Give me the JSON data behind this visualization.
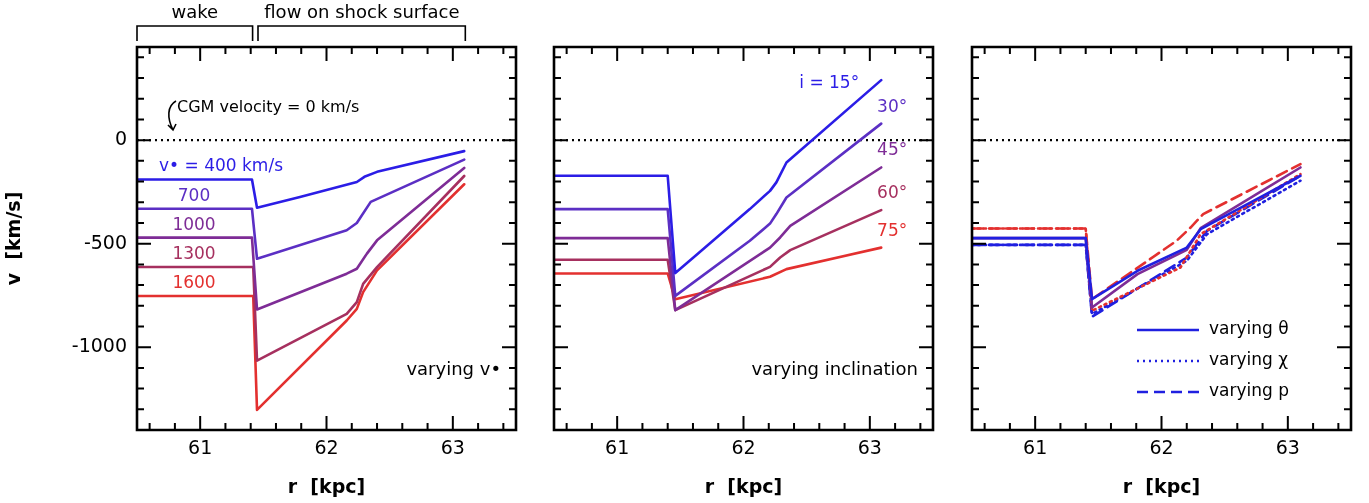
{
  "chart_data": [
    {
      "type": "line",
      "xlabel": "r  [kpc]",
      "ylabel": "v  [km/s]",
      "xlim": [
        60.5,
        63.5
      ],
      "ylim": [
        -1400,
        450
      ],
      "xticks": [
        {
          "value": 60.6,
          "label": null
        },
        {
          "value": 60.8,
          "label": null
        },
        61,
        {
          "value": 61.2,
          "label": null
        },
        {
          "value": 61.4,
          "label": null
        },
        {
          "value": 61.6,
          "label": null
        },
        {
          "value": 61.8,
          "label": null
        },
        62,
        {
          "value": 62.2,
          "label": null
        },
        {
          "value": 62.4,
          "label": null
        },
        {
          "value": 62.6,
          "label": null
        },
        {
          "value": 62.8,
          "label": null
        },
        63,
        {
          "value": 63.2,
          "label": null
        },
        {
          "value": 63.4,
          "label": null
        }
      ],
      "yticks": [
        {
          "value": -1300,
          "label": null
        },
        {
          "value": -1200,
          "label": null
        },
        {
          "value": -1100,
          "label": null
        },
        -1000,
        {
          "value": -900,
          "label": null
        },
        {
          "value": -800,
          "label": null
        },
        {
          "value": -700,
          "label": null
        },
        {
          "value": -600,
          "label": null
        },
        -500,
        {
          "value": -400,
          "label": null
        },
        {
          "value": -300,
          "label": null
        },
        {
          "value": -200,
          "label": null
        },
        {
          "value": -100,
          "label": null
        },
        0,
        {
          "value": 100,
          "label": null
        },
        {
          "value": 200,
          "label": null
        },
        {
          "value": 300,
          "label": null
        },
        {
          "value": 400,
          "label": null
        }
      ],
      "ref_lines": [
        {
          "axis": "y",
          "value": 0,
          "label": "CGM velocity = 0 km/s",
          "color": "#000000",
          "line_style": "dotted"
        }
      ],
      "annotations": [
        "wake",
        "flow on shock surface",
        "varying v•"
      ],
      "series": [
        {
          "name": "v• = 400 km/s",
          "color": "#2b1de6",
          "x": [
            60.5,
            61.41,
            61.45,
            61.79,
            62.24,
            62.3,
            62.4,
            63.09
          ],
          "values": [
            -190,
            -190,
            -326,
            -274,
            -202,
            -177,
            -153,
            -53
          ]
        },
        {
          "name": "700",
          "color": "#5b2fc4",
          "x": [
            60.5,
            61.41,
            61.45,
            62.16,
            62.24,
            62.35,
            63.09
          ],
          "values": [
            -331,
            -331,
            -573,
            -435,
            -400,
            -298,
            -94
          ]
        },
        {
          "name": "1000",
          "color": "#7e2c96",
          "x": [
            60.5,
            61.41,
            61.45,
            62.16,
            62.24,
            62.32,
            62.4,
            63.09
          ],
          "values": [
            -471,
            -471,
            -818,
            -645,
            -621,
            -548,
            -484,
            -134
          ]
        },
        {
          "name": "1300",
          "color": "#a6305f",
          "x": [
            60.5,
            61.42,
            61.45,
            62.16,
            62.24,
            62.29,
            62.4,
            63.09
          ],
          "values": [
            -613,
            -613,
            -1065,
            -839,
            -782,
            -694,
            -613,
            -173
          ]
        },
        {
          "name": "1600",
          "color": "#e3302f",
          "x": [
            60.5,
            61.42,
            61.45,
            62.16,
            62.24,
            62.29,
            62.4,
            63.09
          ],
          "values": [
            -753,
            -753,
            -1303,
            -871,
            -815,
            -734,
            -629,
            -213
          ]
        }
      ]
    },
    {
      "type": "line",
      "xlabel": "r  [kpc]",
      "tick_labels": "x",
      "xlim": [
        60.5,
        63.5
      ],
      "ylim": [
        -1400,
        450
      ],
      "xticks": [
        {
          "value": 60.6,
          "label": null
        },
        {
          "value": 60.8,
          "label": null
        },
        61,
        {
          "value": 61.2,
          "label": null
        },
        {
          "value": 61.4,
          "label": null
        },
        {
          "value": 61.6,
          "label": null
        },
        {
          "value": 61.8,
          "label": null
        },
        62,
        {
          "value": 62.2,
          "label": null
        },
        {
          "value": 62.4,
          "label": null
        },
        {
          "value": 62.6,
          "label": null
        },
        {
          "value": 62.8,
          "label": null
        },
        63,
        {
          "value": 63.2,
          "label": null
        },
        {
          "value": 63.4,
          "label": null
        }
      ],
      "yticks": [
        {
          "value": -1300,
          "label": null
        },
        {
          "value": -1200,
          "label": null
        },
        {
          "value": -1100,
          "label": null
        },
        -1000,
        {
          "value": -900,
          "label": null
        },
        {
          "value": -800,
          "label": null
        },
        {
          "value": -700,
          "label": null
        },
        {
          "value": -600,
          "label": null
        },
        -500,
        {
          "value": -400,
          "label": null
        },
        {
          "value": -300,
          "label": null
        },
        {
          "value": -200,
          "label": null
        },
        {
          "value": -100,
          "label": null
        },
        0,
        {
          "value": 100,
          "label": null
        },
        {
          "value": 200,
          "label": null
        },
        {
          "value": 300,
          "label": null
        },
        {
          "value": 400,
          "label": null
        }
      ],
      "ref_lines": [
        {
          "axis": "y",
          "value": 0,
          "color": "#000000",
          "line_style": "dotted"
        }
      ],
      "annotations": [
        "varying inclination"
      ],
      "series": [
        {
          "name": "i = 15°",
          "color": "#2b1de6",
          "x": [
            60.5,
            61.4,
            61.46,
            62.05,
            62.21,
            62.26,
            62.34,
            63.09
          ],
          "values": [
            -172,
            -172,
            -642,
            -333,
            -245,
            -204,
            -108,
            290
          ]
        },
        {
          "name": "30°",
          "color": "#5b2fc4",
          "x": [
            60.5,
            61.4,
            61.46,
            62.05,
            62.21,
            62.26,
            62.34,
            63.09
          ],
          "values": [
            -333,
            -333,
            -752,
            -486,
            -403,
            -357,
            -277,
            80
          ]
        },
        {
          "name": "45°",
          "color": "#7e2c96",
          "x": [
            60.5,
            61.4,
            61.46,
            62.21,
            62.29,
            62.37,
            63.09
          ],
          "values": [
            -473,
            -473,
            -821,
            -519,
            -470,
            -414,
            -132
          ]
        },
        {
          "name": "60°",
          "color": "#a6305f",
          "x": [
            60.5,
            61.4,
            61.46,
            62.21,
            62.29,
            62.37,
            63.09
          ],
          "values": [
            -578,
            -578,
            -821,
            -612,
            -567,
            -531,
            -338
          ]
        },
        {
          "name": "75°",
          "color": "#e3302f",
          "x": [
            60.5,
            61.4,
            61.46,
            62.21,
            62.34,
            63.09
          ],
          "values": [
            -644,
            -644,
            -768,
            -660,
            -623,
            -519
          ]
        }
      ]
    },
    {
      "type": "line",
      "xlabel": "r  [kpc]",
      "tick_labels": "x",
      "legend": "bottom right",
      "xlim": [
        60.5,
        63.5
      ],
      "ylim": [
        -1400,
        450
      ],
      "xticks": [
        {
          "value": 60.6,
          "label": null
        },
        {
          "value": 60.8,
          "label": null
        },
        61,
        {
          "value": 61.2,
          "label": null
        },
        {
          "value": 61.4,
          "label": null
        },
        {
          "value": 61.6,
          "label": null
        },
        {
          "value": 61.8,
          "label": null
        },
        62,
        {
          "value": 62.2,
          "label": null
        },
        {
          "value": 62.4,
          "label": null
        },
        {
          "value": 62.6,
          "label": null
        },
        {
          "value": 62.8,
          "label": null
        },
        63,
        {
          "value": 63.2,
          "label": null
        },
        {
          "value": 63.4,
          "label": null
        }
      ],
      "yticks": [
        {
          "value": -1300,
          "label": null
        },
        {
          "value": -1200,
          "label": null
        },
        {
          "value": -1100,
          "label": null
        },
        -1000,
        {
          "value": -900,
          "label": null
        },
        {
          "value": -800,
          "label": null
        },
        {
          "value": -700,
          "label": null
        },
        {
          "value": -600,
          "label": null
        },
        -500,
        {
          "value": -400,
          "label": null
        },
        {
          "value": -300,
          "label": null
        },
        {
          "value": -200,
          "label": null
        },
        {
          "value": -100,
          "label": null
        },
        0,
        {
          "value": 100,
          "label": null
        },
        {
          "value": 200,
          "label": null
        },
        {
          "value": 300,
          "label": null
        },
        {
          "value": 400,
          "label": null
        }
      ],
      "ref_lines": [
        {
          "axis": "y",
          "value": 0,
          "color": "#000000",
          "line_style": "dotted"
        }
      ],
      "series": [
        {
          "name": "varying θ",
          "color": "#2020e0",
          "line_style": "solid",
          "x": [
            60.5,
            61.4,
            61.45,
            61.81,
            62.2,
            62.31,
            62.68,
            63.1
          ],
          "values": [
            -473,
            -473,
            -768,
            -631,
            -519,
            -430,
            -309,
            -172
          ]
        },
        {
          "color": "#7e2c96",
          "line_style": "solid",
          "x": [
            60.5,
            61.4,
            61.45,
            61.81,
            62.2,
            62.31,
            63.1
          ],
          "values": [
            -473,
            -473,
            -808,
            -647,
            -530,
            -425,
            -132
          ]
        },
        {
          "color": "#e3302f",
          "line_style": "dotted",
          "x": [
            60.5,
            61.4,
            61.45,
            62.15,
            62.31,
            63.1
          ],
          "values": [
            -427,
            -427,
            -824,
            -615,
            -454,
            -164
          ]
        },
        {
          "name": "varying χ",
          "color": "#2020e0",
          "line_style": "dotted",
          "x": [
            60.5,
            61.4,
            61.45,
            62.2,
            62.36,
            63.1
          ],
          "values": [
            -506,
            -506,
            -840,
            -583,
            -454,
            -196
          ]
        },
        {
          "color": "#e3302f",
          "line_style": "dashed",
          "x": [
            60.5,
            61.4,
            61.45,
            62.12,
            62.23,
            62.33,
            63.1
          ],
          "values": [
            -427,
            -427,
            -768,
            -486,
            -422,
            -357,
            -116
          ]
        },
        {
          "name": "varying p",
          "color": "#2020e0",
          "line_style": "dashed",
          "x": [
            60.5,
            61.4,
            61.45,
            62.2,
            62.36,
            63.1
          ],
          "values": [
            -506,
            -506,
            -853,
            -567,
            -438,
            -172
          ]
        }
      ]
    }
  ]
}
